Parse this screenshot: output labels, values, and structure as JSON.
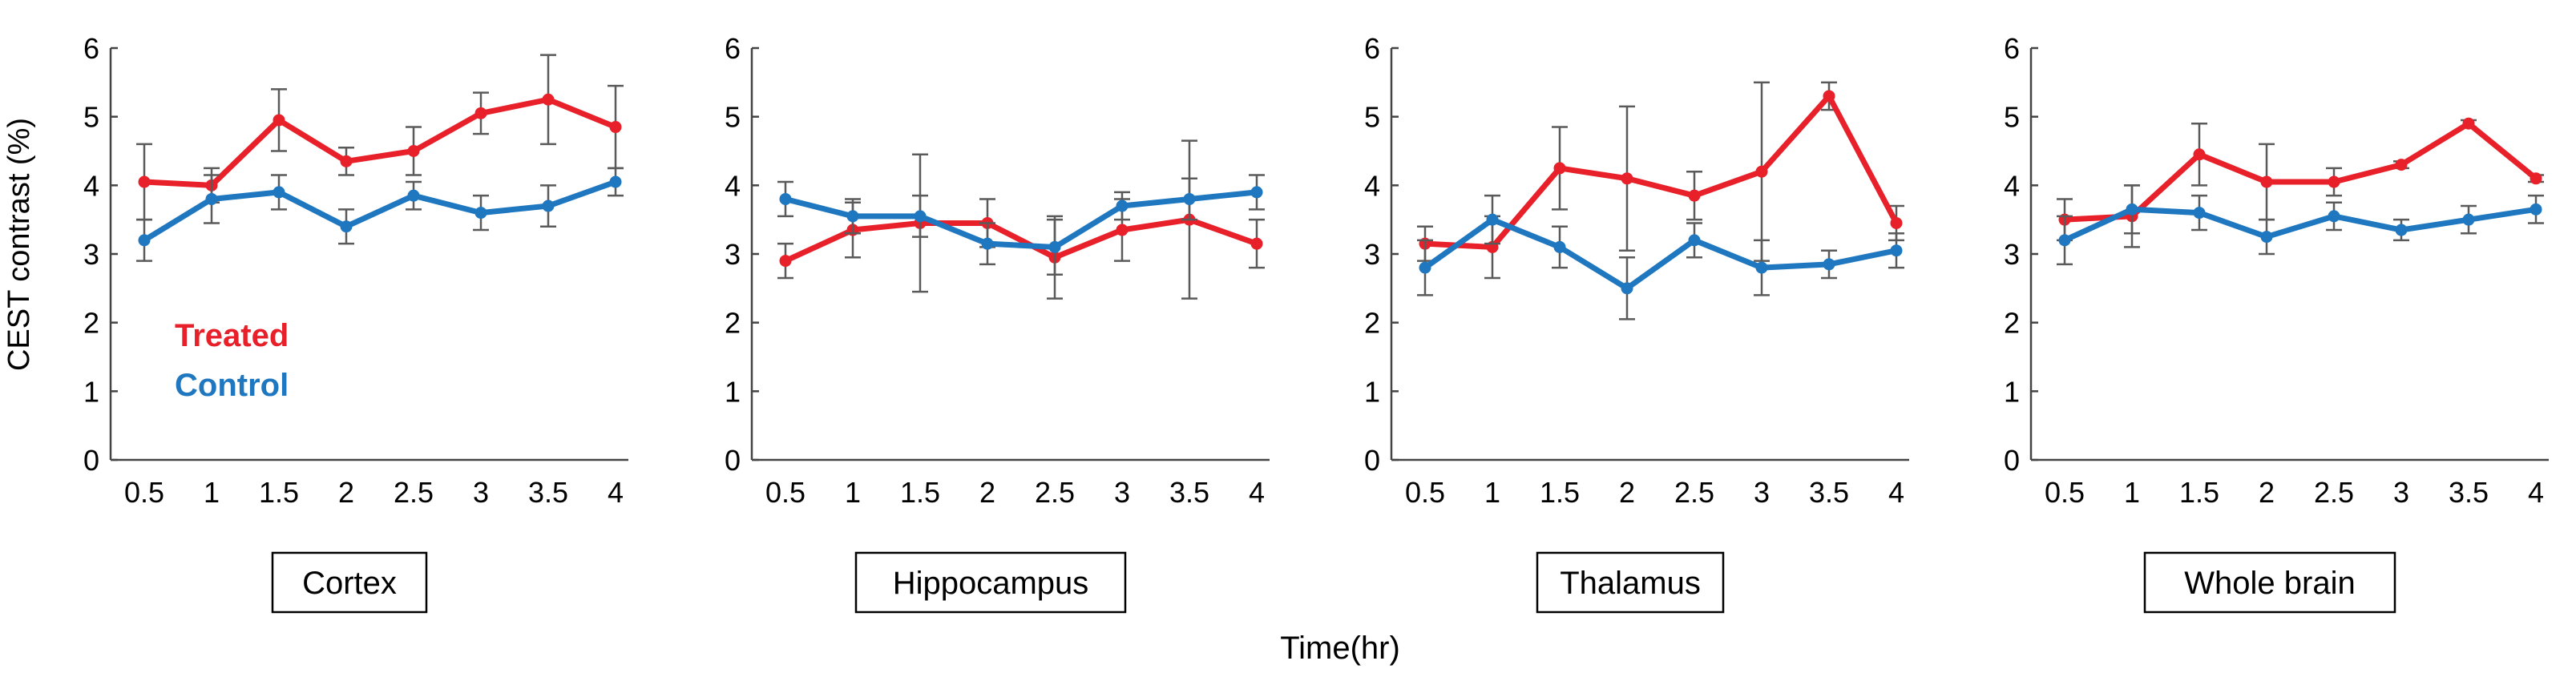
{
  "figure": {
    "y_axis_label": "CEST contrast (%)",
    "x_axis_label": "Time(hr)"
  },
  "legend": [
    {
      "name": "Treated",
      "color": "#e8202a"
    },
    {
      "name": "Control",
      "color": "#1f77c0"
    }
  ],
  "colors": {
    "treated": "#e8202a",
    "control": "#1f77c0",
    "error_bar": "#5a5a5a",
    "axis": "#444444"
  },
  "chart_data": [
    {
      "type": "line",
      "title": "Cortex",
      "xlabel": "Time(hr)",
      "ylabel": "CEST contrast (%)",
      "ylim": [
        0,
        6
      ],
      "y_ticks": [
        "0",
        "1",
        "2",
        "3",
        "4",
        "5",
        "6"
      ],
      "x": [
        "0.5",
        "1",
        "1.5",
        "2",
        "2.5",
        "3",
        "3.5",
        "4"
      ],
      "series": [
        {
          "name": "Treated",
          "values": [
            4.05,
            4.0,
            4.95,
            4.35,
            4.5,
            5.05,
            5.25,
            4.85
          ],
          "err": [
            0.55,
            0.25,
            0.45,
            0.2,
            0.35,
            0.3,
            0.65,
            0.6
          ]
        },
        {
          "name": "Control",
          "values": [
            3.2,
            3.8,
            3.9,
            3.4,
            3.85,
            3.6,
            3.7,
            4.05
          ],
          "err": [
            0.3,
            0.35,
            0.25,
            0.25,
            0.2,
            0.25,
            0.3,
            0.2
          ]
        }
      ]
    },
    {
      "type": "line",
      "title": "Hippocampus",
      "xlabel": "Time(hr)",
      "ylabel": "CEST contrast (%)",
      "ylim": [
        0,
        6
      ],
      "y_ticks": [
        "0",
        "1",
        "2",
        "3",
        "4",
        "5",
        "6"
      ],
      "x": [
        "0.5",
        "1",
        "1.5",
        "2",
        "2.5",
        "3",
        "3.5",
        "4"
      ],
      "series": [
        {
          "name": "Treated",
          "values": [
            2.9,
            3.35,
            3.45,
            3.45,
            2.95,
            3.35,
            3.5,
            3.15
          ],
          "err": [
            0.25,
            0.4,
            1.0,
            0.35,
            0.6,
            0.45,
            1.15,
            0.35
          ]
        },
        {
          "name": "Control",
          "values": [
            3.8,
            3.55,
            3.55,
            3.15,
            3.1,
            3.7,
            3.8,
            3.9
          ],
          "err": [
            0.25,
            0.25,
            0.3,
            0.3,
            0.4,
            0.2,
            0.3,
            0.25
          ]
        }
      ]
    },
    {
      "type": "line",
      "title": "Thalamus",
      "xlabel": "Time(hr)",
      "ylabel": "CEST contrast (%)",
      "ylim": [
        0,
        6
      ],
      "y_ticks": [
        "0",
        "1",
        "2",
        "3",
        "4",
        "5",
        "6"
      ],
      "x": [
        "0.5",
        "1",
        "1.5",
        "2",
        "2.5",
        "3",
        "3.5",
        "4"
      ],
      "series": [
        {
          "name": "Treated",
          "values": [
            3.15,
            3.1,
            4.25,
            4.1,
            3.85,
            4.2,
            5.3,
            3.45
          ],
          "err": [
            0.25,
            0.45,
            0.6,
            1.05,
            0.35,
            1.3,
            0.2,
            0.25
          ]
        },
        {
          "name": "Control",
          "values": [
            2.8,
            3.5,
            3.1,
            2.5,
            3.2,
            2.8,
            2.85,
            3.05
          ],
          "err": [
            0.4,
            0.35,
            0.3,
            0.45,
            0.25,
            0.4,
            0.2,
            0.25
          ]
        }
      ]
    },
    {
      "type": "line",
      "title": "Whole brain",
      "xlabel": "Time(hr)",
      "ylabel": "CEST contrast (%)",
      "ylim": [
        0,
        6
      ],
      "y_ticks": [
        "0",
        "1",
        "2",
        "3",
        "4",
        "5",
        "6"
      ],
      "x": [
        "0.5",
        "1",
        "1.5",
        "2",
        "2.5",
        "3",
        "3.5",
        "4"
      ],
      "series": [
        {
          "name": "Treated",
          "values": [
            3.5,
            3.55,
            4.45,
            4.05,
            4.05,
            4.3,
            4.9,
            4.1
          ],
          "err": [
            0.3,
            0.45,
            0.45,
            0.55,
            0.2,
            0.05,
            0.05,
            0.05
          ]
        },
        {
          "name": "Control",
          "values": [
            3.2,
            3.65,
            3.6,
            3.25,
            3.55,
            3.35,
            3.5,
            3.65
          ],
          "err": [
            0.35,
            0.35,
            0.25,
            0.25,
            0.2,
            0.15,
            0.2,
            0.2
          ]
        }
      ]
    }
  ]
}
